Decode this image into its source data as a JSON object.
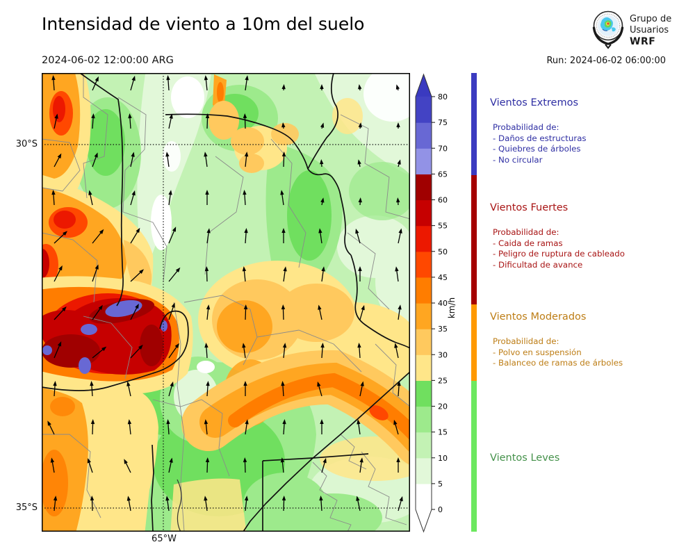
{
  "header": {
    "title": "Intensidad de viento a 10m del suelo",
    "valid_time": "2024-06-02 12:00:00 ARG",
    "run": "Run: 2024-06-02 06:00:00",
    "logo": {
      "org_line1": "Grupo de",
      "org_line2": "Usuarios",
      "org_line3": "WRF"
    }
  },
  "map_axes": {
    "lat_top": "30°S",
    "lat_bottom": "35°S",
    "lon": "65°W"
  },
  "colorbar": {
    "unit": "km/h",
    "ticks": [
      0,
      5,
      10,
      15,
      20,
      25,
      30,
      35,
      40,
      45,
      50,
      55,
      60,
      65,
      70,
      75,
      80
    ],
    "colors_bottom_to_top": [
      "#ffffff",
      "#e2f8d9",
      "#c3f2b4",
      "#9dea8c",
      "#70df5f",
      "#ffe689",
      "#ffc95e",
      "#ffa621",
      "#ff7d00",
      "#ff4800",
      "#ec1800",
      "#c60000",
      "#a00000",
      "#9292e6",
      "#6868d4",
      "#4343c4"
    ],
    "over_color": "#3a3ac0",
    "under_color": "#ffffff"
  },
  "categories": [
    {
      "name": "Vientos Extremos",
      "bar_color": "#3b3bc0",
      "text_color": "#2e2ea3",
      "prob_label": "Probabilidad de:",
      "items": [
        "- Daños de estructuras",
        "- Quiebres de árboles",
        "- No circular"
      ]
    },
    {
      "name": "Vientos Fuertes",
      "bar_color": "#a50000",
      "text_color": "#a81414",
      "prob_label": "Probabilidad de:",
      "items": [
        "- Caida de ramas",
        "- Peligro de ruptura de cableado",
        "- Dificultad de avance"
      ]
    },
    {
      "name": "Vientos Moderados",
      "bar_color": "#ff9900",
      "text_color": "#bd7d15",
      "prob_label": "Probabilidad de:",
      "items": [
        "- Polvo en suspensión",
        "- Balanceo de ramas de árboles"
      ]
    },
    {
      "name": "Vientos Leves",
      "bar_color": "#6ce85f",
      "text_color": "#44914a",
      "prob_label": "",
      "items": []
    }
  ],
  "chart_data": {
    "type": "heatmap",
    "title": "Intensidad de viento a 10m del suelo",
    "valid_time": "2024-06-02 12:00:00 ARG",
    "model_run": "2024-06-02 06:00:00",
    "variable": "wind speed at 10 m",
    "units": "km/h",
    "colorbar_ticks": [
      0,
      5,
      10,
      15,
      20,
      25,
      30,
      35,
      40,
      45,
      50,
      55,
      60,
      65,
      70,
      75,
      80
    ],
    "colorbar_range": [
      0,
      85
    ],
    "lat_ticks": [
      "30°S",
      "35°S"
    ],
    "lon_ticks": [
      "65°W"
    ],
    "legend_position": "right",
    "grid": "dotted lat/lon lines",
    "overlay": "wind direction arrows pointing mostly north-northeast",
    "wind_categories": [
      {
        "name": "Vientos Leves",
        "range_kmh": [
          0,
          25
        ],
        "color": "#6ce85f"
      },
      {
        "name": "Vientos Moderados",
        "range_kmh": [
          25,
          40
        ],
        "color": "#ff9900"
      },
      {
        "name": "Vientos Fuertes",
        "range_kmh": [
          40,
          65
        ],
        "color": "#a50000"
      },
      {
        "name": "Vientos Extremos",
        "range_kmh": [
          65,
          85
        ],
        "color": "#3b3bc0"
      }
    ],
    "observed_max": "75-85 km/h (blue-purple patches over the western sierras)"
  }
}
